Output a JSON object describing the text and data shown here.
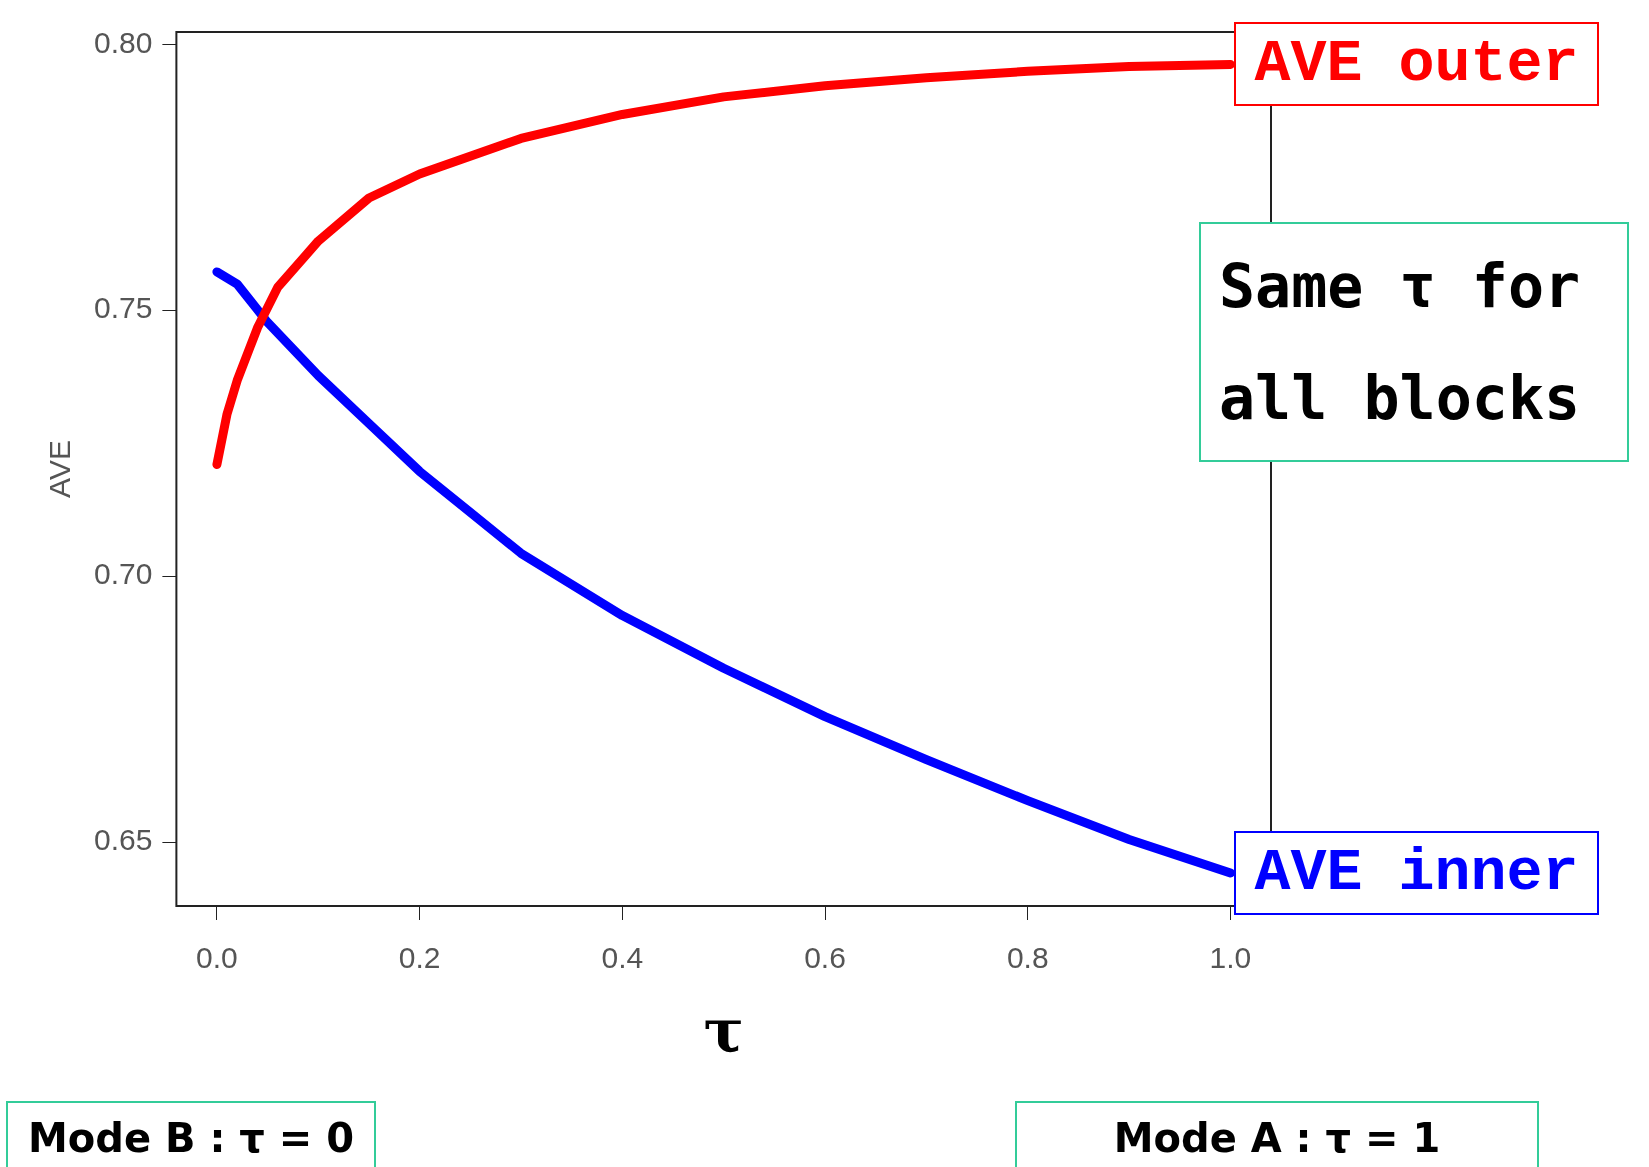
{
  "chart_data": {
    "type": "line",
    "xlabel": "τ",
    "ylabel": "AVE",
    "xlim": [
      -0.04,
      1.04
    ],
    "ylim": [
      0.638,
      0.8023
    ],
    "xticks": [
      {
        "value": 0,
        "label": "0.0"
      },
      {
        "value": 0.2,
        "label": "0.2"
      },
      {
        "value": 0.4,
        "label": "0.4"
      },
      {
        "value": 0.6,
        "label": "0.6"
      },
      {
        "value": 0.8,
        "label": "0.8"
      },
      {
        "value": 1,
        "label": "1.0"
      }
    ],
    "yticks": [
      {
        "value": 0.65,
        "label": "0.65"
      },
      {
        "value": 0.7,
        "label": "0.70"
      },
      {
        "value": 0.75,
        "label": "0.75"
      },
      {
        "value": 0.8,
        "label": "0.80"
      }
    ],
    "grid": false,
    "legend": false,
    "marker": "none",
    "line_style": "solid",
    "series": [
      {
        "name": "AVE outer",
        "color": "#ff0000",
        "x": [
          0,
          0.01,
          0.02,
          0.04,
          0.06,
          0.1,
          0.15,
          0.2,
          0.3,
          0.4,
          0.5,
          0.6,
          0.7,
          0.8,
          0.9,
          1
        ],
        "values": [
          0.721,
          0.7305,
          0.7368,
          0.7467,
          0.7543,
          0.763,
          0.7711,
          0.7756,
          0.7823,
          0.7868,
          0.7901,
          0.7922,
          0.7937,
          0.7949,
          0.7958,
          0.7962
        ]
      },
      {
        "name": "AVE inner",
        "color": "#0000ff",
        "x": [
          0,
          0.02,
          0.05,
          0.1,
          0.15,
          0.2,
          0.3,
          0.4,
          0.5,
          0.6,
          0.7,
          0.8,
          0.9,
          1
        ],
        "values": [
          0.7572,
          0.7549,
          0.7477,
          0.7377,
          0.7287,
          0.7197,
          0.7043,
          0.6926,
          0.6827,
          0.6736,
          0.6655,
          0.6578,
          0.6505,
          0.6442
        ]
      }
    ],
    "annotations": [
      "Same τ for all blocks",
      "Mode B : τ = 0",
      "Mode A : τ = 1"
    ]
  }
}
